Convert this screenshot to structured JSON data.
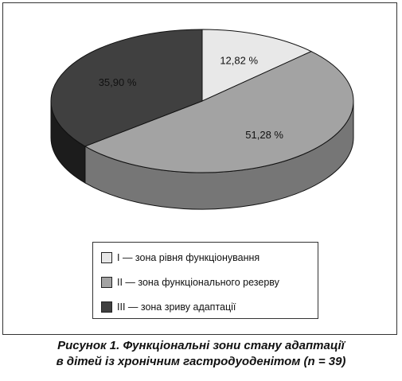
{
  "chart_data": {
    "type": "pie",
    "style": "3d",
    "slices": [
      {
        "label": "I — зона рівня функціонування",
        "value": 12.82,
        "value_label": "12,82 %",
        "color": "#e8e8e8",
        "side_color": "#bdbdbd"
      },
      {
        "label": "II — зона функціонального резерву",
        "value": 51.28,
        "value_label": "51,28 %",
        "color": "#a3a3a3",
        "side_color": "#767676"
      },
      {
        "label": "III — зона зриву адаптації",
        "value": 35.9,
        "value_label": "35,90 %",
        "color": "#404040",
        "side_color": "#1c1c1c"
      }
    ],
    "legend_position": "bottom"
  },
  "caption": {
    "line1": "Рисунок 1. Функціональні зони стану адаптації",
    "line2": "в дітей із хронічним гастродуоденітом (n = 39)"
  }
}
